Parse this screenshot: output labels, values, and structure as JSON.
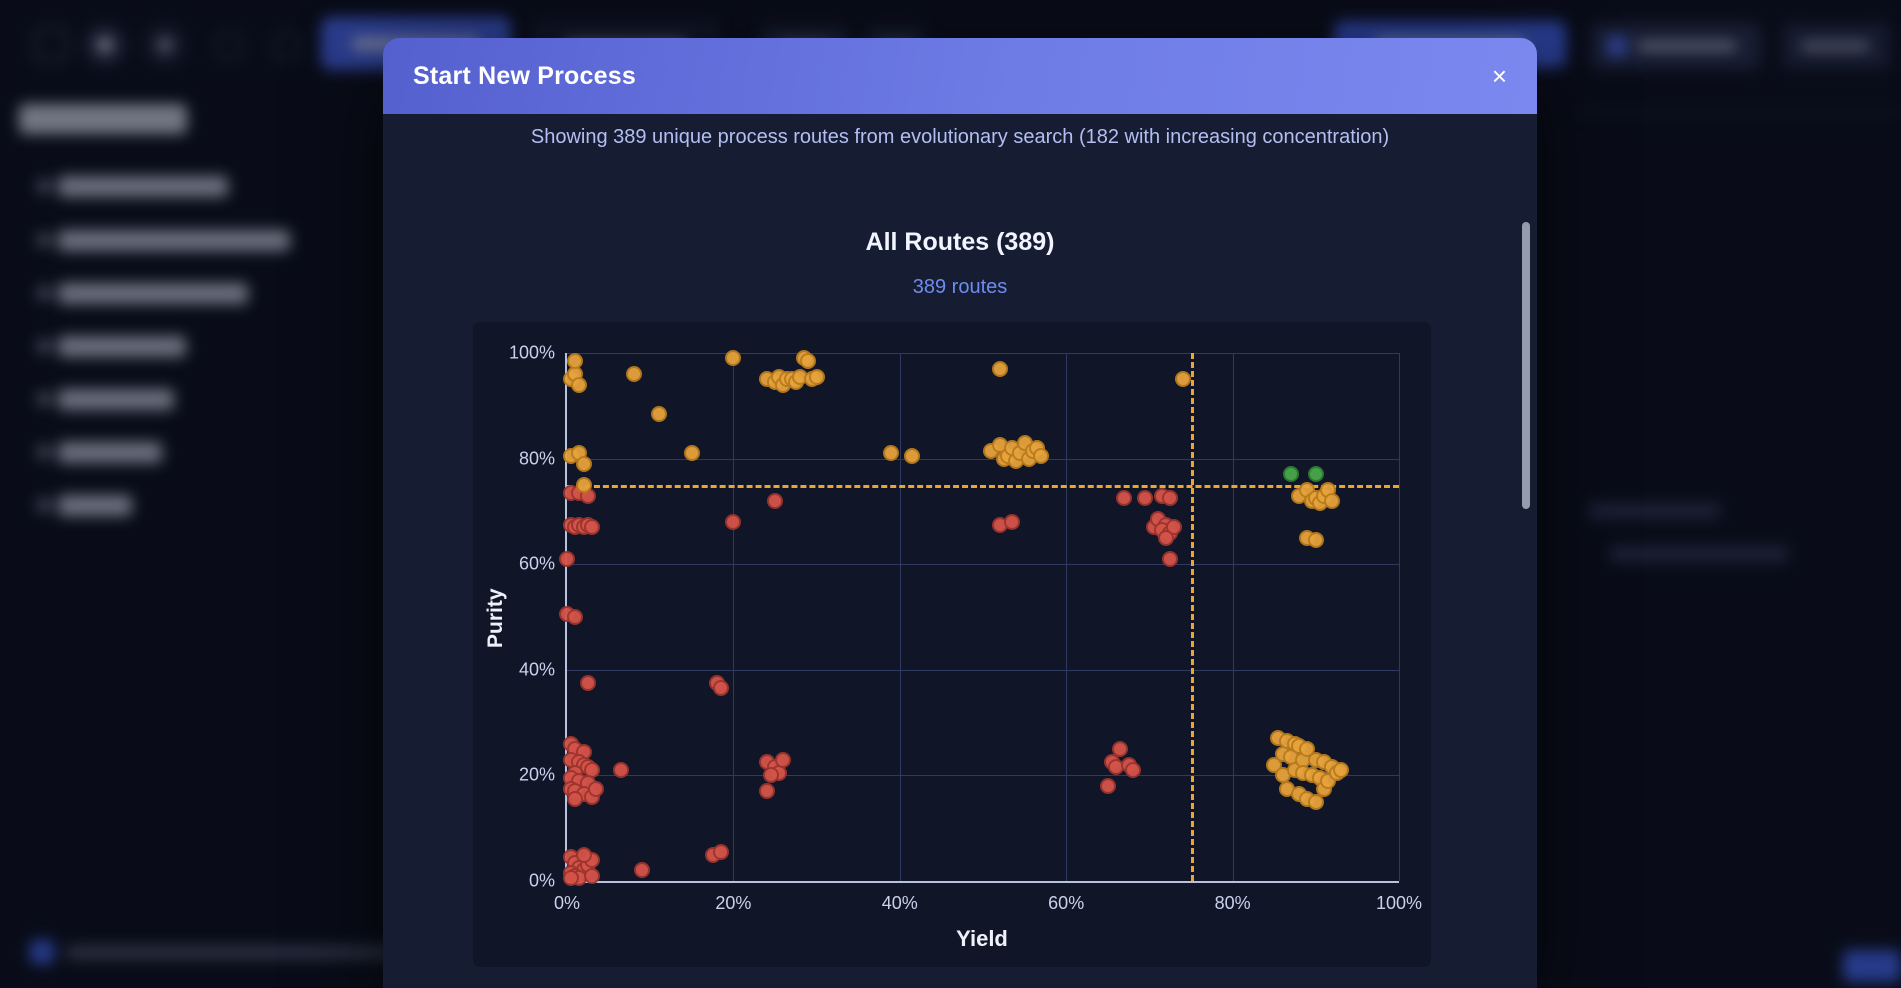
{
  "modal": {
    "title": "Start New Process",
    "close_icon": "×",
    "subtitle": "Showing 389 unique process routes from evolutionary search (182 with increasing concentration)",
    "section_title": "All Routes (389)",
    "routes_count_label": "389 routes"
  },
  "colors": {
    "header_gradient_start": "#5560cf",
    "header_gradient_end": "#7b88ef",
    "accent_blue": "#6d8cf0",
    "threshold_orange": "#eda52f",
    "point_orange": "#e7a33c",
    "point_red": "#d5544a",
    "point_green": "#49a84c",
    "modal_background": "#161d33",
    "chart_background": "#101628"
  },
  "chart_data": {
    "type": "scatter",
    "title": "All Routes (389)",
    "subtitle": "389 routes",
    "xlabel": "Yield",
    "ylabel": "Purity",
    "xlim": [
      0,
      100
    ],
    "ylim": [
      0,
      100
    ],
    "x_ticks": [
      0,
      20,
      40,
      60,
      80,
      100
    ],
    "y_ticks": [
      0,
      20,
      40,
      60,
      80,
      100
    ],
    "tick_suffix": "%",
    "grid": true,
    "legend": "none",
    "threshold_lines": [
      {
        "axis": "y",
        "value": 75,
        "style": "dashed",
        "color": "#eda52f"
      },
      {
        "axis": "x",
        "value": 75,
        "style": "dashed",
        "color": "#eda52f"
      }
    ],
    "series": [
      {
        "name": "red",
        "fill": "#d5544a",
        "stroke": "#9c352e",
        "points": [
          [
            0.5,
            73.5
          ],
          [
            1.5,
            73.5
          ],
          [
            2.5,
            73
          ],
          [
            25,
            72
          ],
          [
            20,
            68
          ],
          [
            0.5,
            67.5
          ],
          [
            1,
            67
          ],
          [
            1.5,
            67.5
          ],
          [
            2,
            67
          ],
          [
            2.5,
            67.5
          ],
          [
            3,
            67
          ],
          [
            52,
            67.5
          ],
          [
            53.5,
            68
          ],
          [
            67,
            72.5
          ],
          [
            69.5,
            72.5
          ],
          [
            71.5,
            73
          ],
          [
            72.5,
            72.5
          ],
          [
            70.5,
            67
          ],
          [
            71,
            68.5
          ],
          [
            72,
            67.5
          ],
          [
            71.5,
            66.5
          ],
          [
            72.5,
            66
          ],
          [
            73,
            67
          ],
          [
            72,
            65
          ],
          [
            72.5,
            61
          ],
          [
            0,
            61
          ],
          [
            0,
            50.5
          ],
          [
            1,
            50
          ],
          [
            2.5,
            37.5
          ],
          [
            18,
            37.5
          ],
          [
            18.5,
            36.5
          ],
          [
            0.5,
            26
          ],
          [
            1,
            25
          ],
          [
            2,
            24.5
          ],
          [
            0.5,
            23
          ],
          [
            1.5,
            22.5
          ],
          [
            2,
            22
          ],
          [
            2.5,
            21.5
          ],
          [
            3,
            21
          ],
          [
            1,
            20.5
          ],
          [
            0.5,
            19.5
          ],
          [
            1.5,
            19
          ],
          [
            2.5,
            18.5
          ],
          [
            0.5,
            17.5
          ],
          [
            1,
            17
          ],
          [
            2,
            16.5
          ],
          [
            3,
            16
          ],
          [
            3.5,
            17.5
          ],
          [
            1,
            15.5
          ],
          [
            6.5,
            21
          ],
          [
            24,
            22.5
          ],
          [
            25,
            21.5
          ],
          [
            25.5,
            20.5
          ],
          [
            26,
            23
          ],
          [
            24.5,
            20
          ],
          [
            24,
            17
          ],
          [
            65,
            18
          ],
          [
            65.5,
            22.5
          ],
          [
            66,
            21.5
          ],
          [
            66.5,
            25
          ],
          [
            67.5,
            22
          ],
          [
            68,
            21
          ],
          [
            0.5,
            4.5
          ],
          [
            1,
            3.5
          ],
          [
            1.5,
            2.5
          ],
          [
            2,
            2
          ],
          [
            0.5,
            1.5
          ],
          [
            1,
            1
          ],
          [
            2.5,
            3
          ],
          [
            3,
            4
          ],
          [
            1.5,
            0.5
          ],
          [
            0.5,
            0.5
          ],
          [
            2,
            5
          ],
          [
            3,
            1
          ],
          [
            9,
            2
          ],
          [
            17.5,
            5
          ],
          [
            18.5,
            5.5
          ]
        ]
      },
      {
        "name": "orange",
        "fill": "#e7a33c",
        "stroke": "#b97c1c",
        "points": [
          [
            0.5,
            95
          ],
          [
            1,
            96
          ],
          [
            1.5,
            94
          ],
          [
            1,
            98.5
          ],
          [
            8,
            96
          ],
          [
            11,
            88.5
          ],
          [
            20,
            99
          ],
          [
            24,
            95
          ],
          [
            25,
            94.5
          ],
          [
            25.5,
            95.5
          ],
          [
            26,
            94
          ],
          [
            26.5,
            95
          ],
          [
            27,
            95
          ],
          [
            27.5,
            94.5
          ],
          [
            28,
            95.5
          ],
          [
            28.5,
            99
          ],
          [
            29,
            98.5
          ],
          [
            29.5,
            95
          ],
          [
            30,
            95.5
          ],
          [
            39,
            81
          ],
          [
            41.5,
            80.5
          ],
          [
            52,
            97
          ],
          [
            51,
            81.5
          ],
          [
            52,
            82.5
          ],
          [
            52.5,
            80
          ],
          [
            53,
            80.5
          ],
          [
            53.5,
            82
          ],
          [
            54,
            79.5
          ],
          [
            54.5,
            81
          ],
          [
            55,
            83
          ],
          [
            55.5,
            80
          ],
          [
            56,
            81.5
          ],
          [
            56.5,
            82
          ],
          [
            57,
            80.5
          ],
          [
            74,
            95
          ],
          [
            0.5,
            80.5
          ],
          [
            1.5,
            81
          ],
          [
            2,
            79
          ],
          [
            15,
            81
          ],
          [
            2,
            75
          ],
          [
            88,
            73
          ],
          [
            89,
            74
          ],
          [
            89.5,
            72
          ],
          [
            90,
            72.5
          ],
          [
            90.5,
            71.5
          ],
          [
            91,
            73
          ],
          [
            91.5,
            74
          ],
          [
            92,
            72
          ],
          [
            89,
            65
          ],
          [
            90,
            64.5
          ],
          [
            85,
            22
          ],
          [
            85.5,
            27
          ],
          [
            86,
            24
          ],
          [
            86,
            20
          ],
          [
            86.5,
            26.5
          ],
          [
            86.5,
            17.5
          ],
          [
            87,
            23.5
          ],
          [
            87.5,
            26
          ],
          [
            87.5,
            21
          ],
          [
            88,
            25.5
          ],
          [
            88,
            16.5
          ],
          [
            88.5,
            23
          ],
          [
            88.5,
            20.5
          ],
          [
            89,
            25
          ],
          [
            89,
            15.5
          ],
          [
            89.5,
            20
          ],
          [
            90,
            23
          ],
          [
            90,
            15
          ],
          [
            90.5,
            19.5
          ],
          [
            91,
            22.5
          ],
          [
            91,
            17.5
          ],
          [
            91.5,
            19
          ],
          [
            92,
            21.5
          ],
          [
            92.5,
            20.5
          ],
          [
            93,
            21
          ]
        ]
      },
      {
        "name": "green",
        "fill": "#49a84c",
        "stroke": "#2e7d32",
        "points": [
          [
            87,
            77
          ],
          [
            90,
            77
          ]
        ]
      }
    ]
  }
}
